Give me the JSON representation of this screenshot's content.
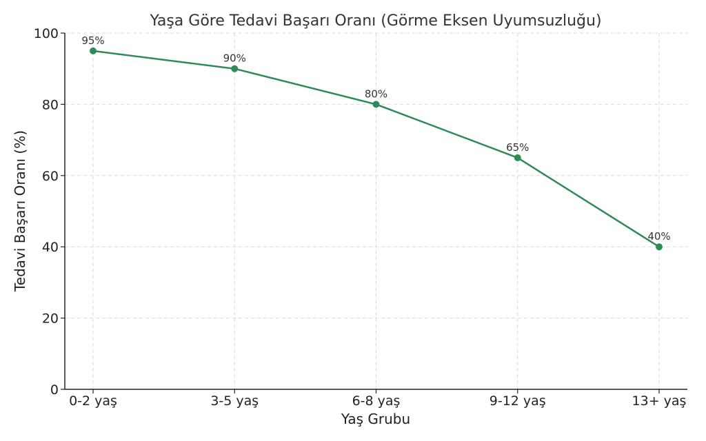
{
  "chart_data": {
    "type": "line",
    "title": "Yaşa Göre Tedavi Başarı Oranı (Görme Eksen Uyumsuzluğu)",
    "xlabel": "Yaş Grubu",
    "ylabel": "Tedavi Başarı Oranı (%)",
    "categories": [
      "0-2 yaş",
      "3-5 yaş",
      "6-8 yaş",
      "9-12 yaş",
      "13+ yaş"
    ],
    "series": [
      {
        "values": [
          95,
          90,
          80,
          65,
          40
        ],
        "data_labels": [
          "95%",
          "90%",
          "80%",
          "65%",
          "40%"
        ],
        "color": "#2e8b57",
        "marker": "circle"
      }
    ],
    "ylim": [
      0,
      100
    ],
    "yticks": [
      0,
      20,
      40,
      60,
      80,
      100
    ],
    "ytick_labels": [
      "0",
      "20",
      "40",
      "60",
      "80",
      "100"
    ],
    "grid": true
  }
}
